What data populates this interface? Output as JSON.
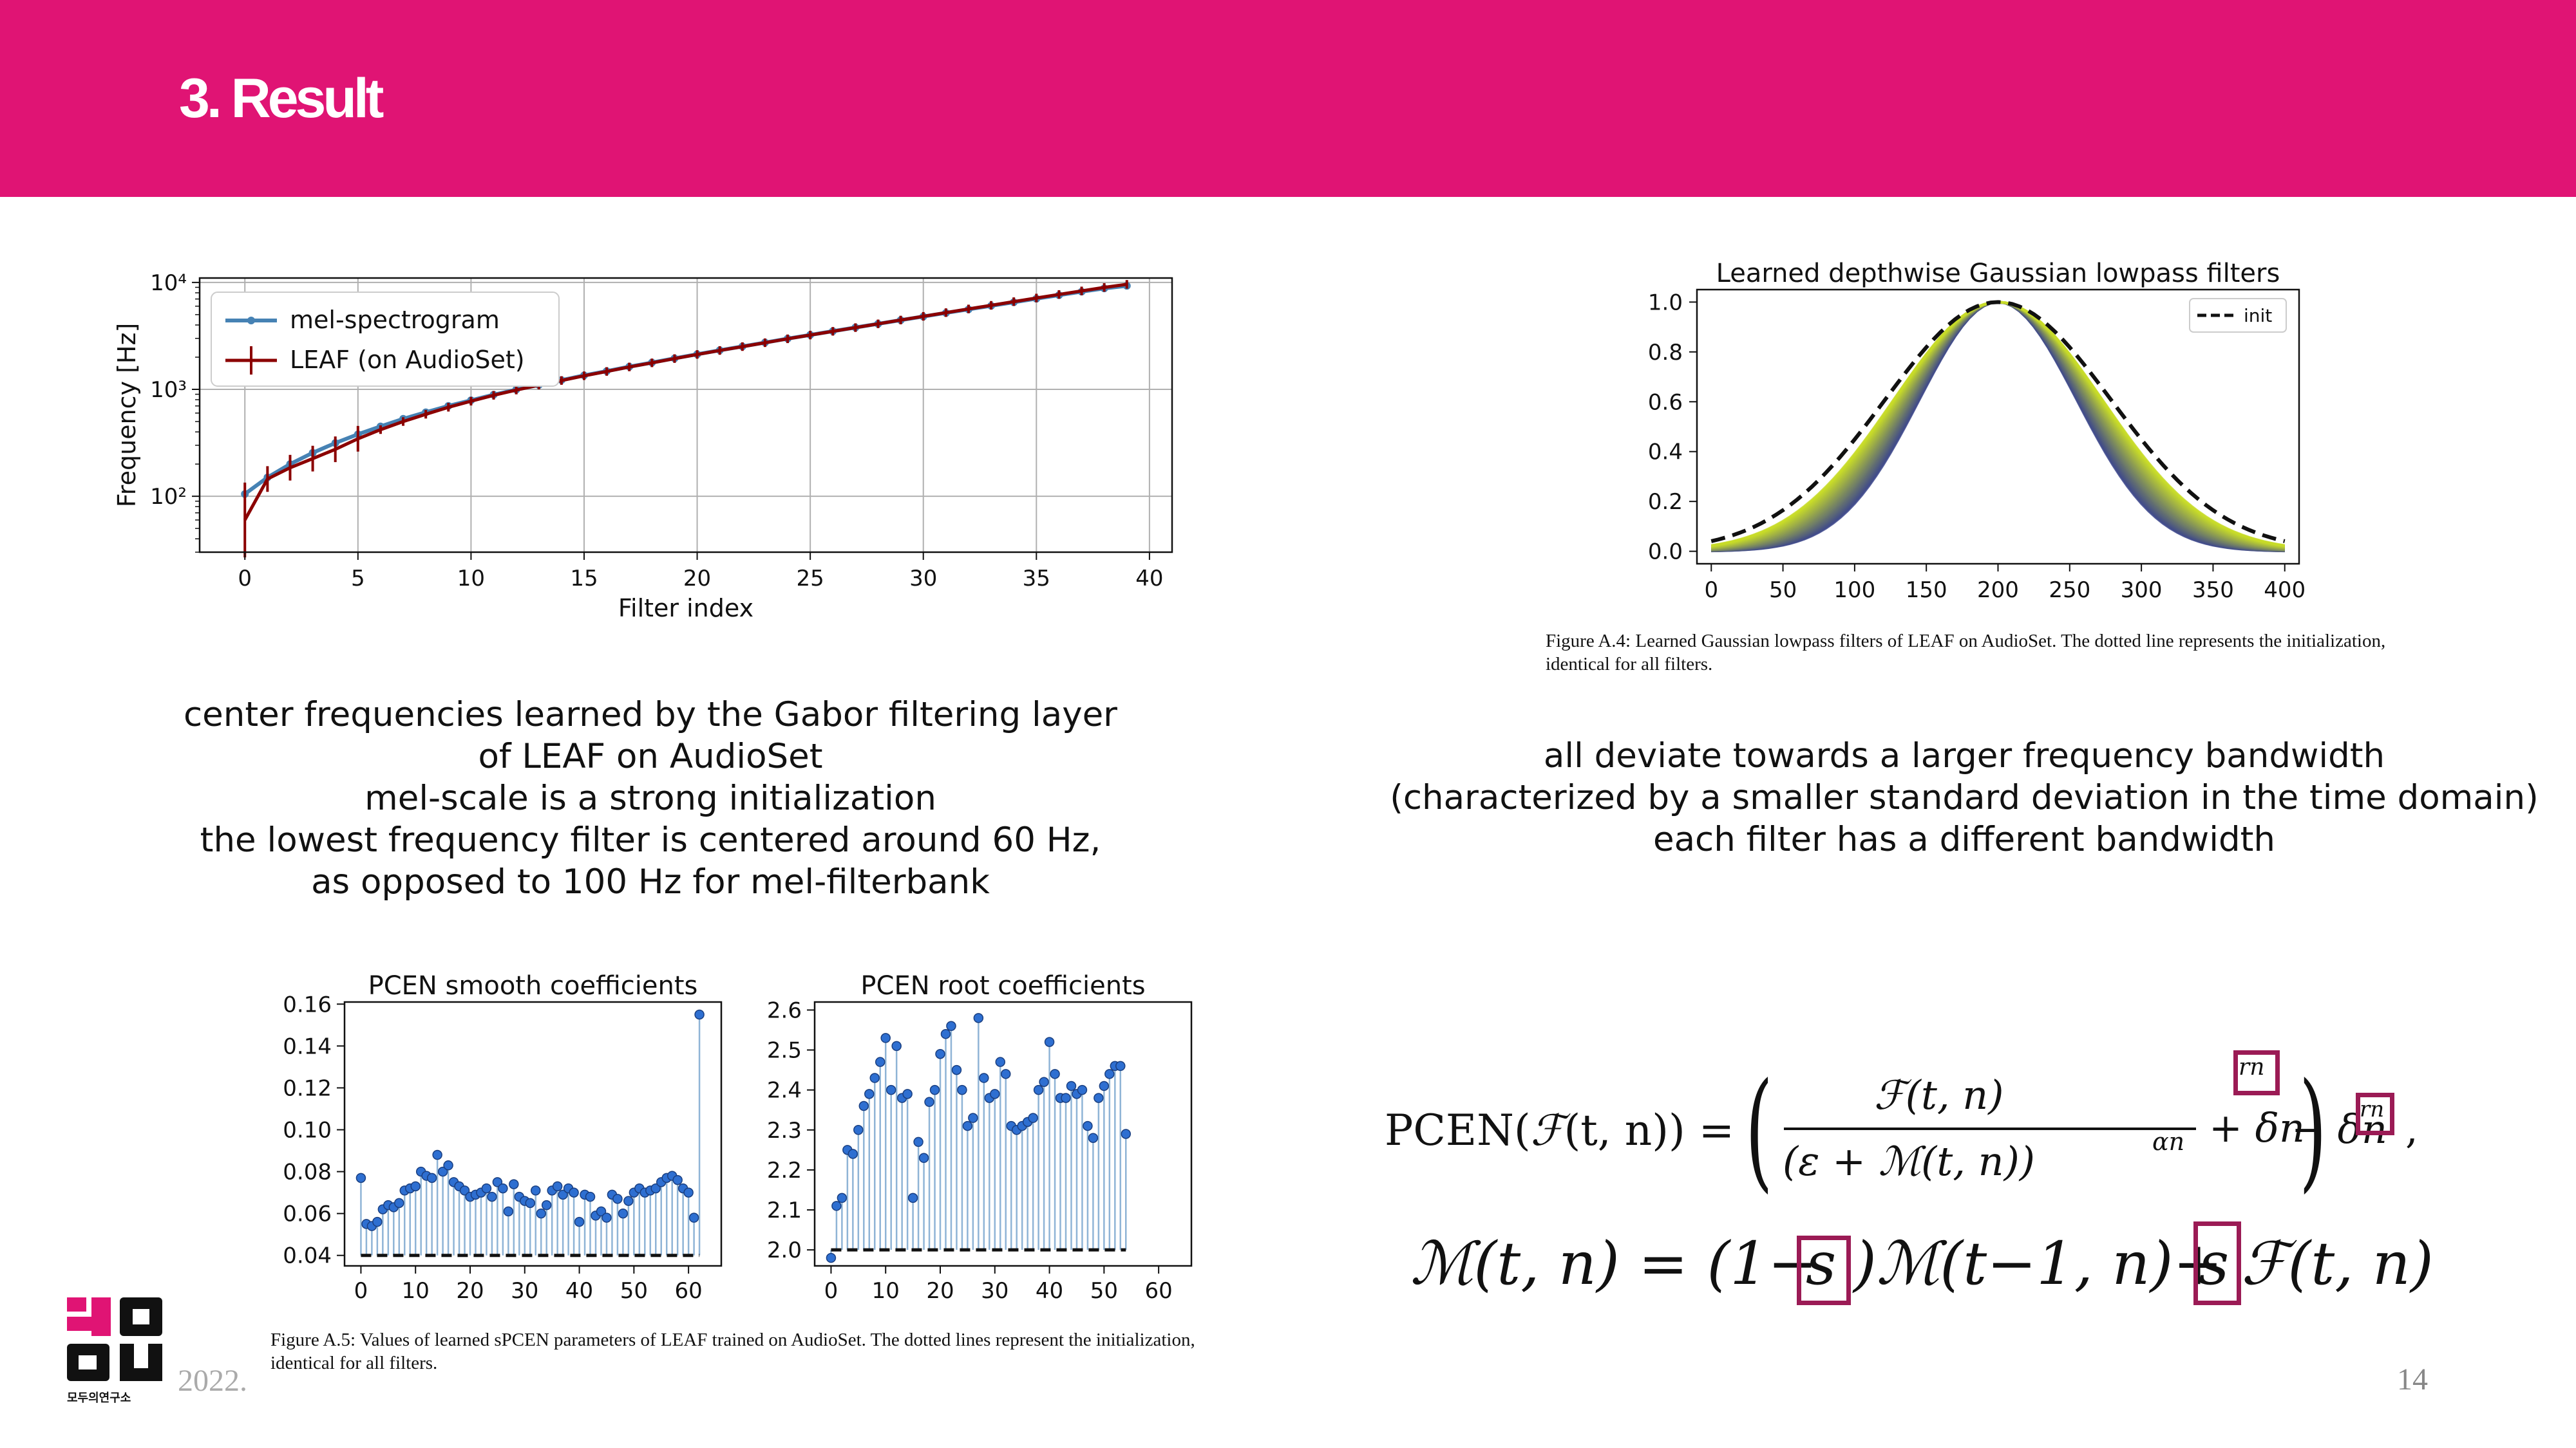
{
  "slide": {
    "title": "3. Result",
    "date": "2022.",
    "page_number": "14",
    "logo_text": "모두의연구소"
  },
  "text": {
    "left_lines": [
      "center frequencies learned by the Gabor filtering layer",
      "of LEAF on AudioSet",
      "mel-scale is a strong initialization",
      "the lowest frequency filter is centered around 60 Hz,",
      "as opposed to 100 Hz for mel-filterbank"
    ],
    "right_lines": [
      "all deviate towards a larger frequency bandwidth",
      "(characterized by a smaller standard deviation in the time domain)",
      "each filter has a different bandwidth"
    ]
  },
  "captions": {
    "fig_a4": "Figure A.4: Learned Gaussian lowpass filters of LEAF on AudioSet. The dotted line represents the initialization, identical for all filters.",
    "fig_a5": "Figure A.5: Values of learned sPCEN parameters of LEAF trained on AudioSet. The dotted lines represent the initialization, identical for all filters."
  },
  "colors": {
    "header": "#e01474",
    "mel": "#4682b4",
    "leaf": "#8b0000",
    "stem": "#8fb4d6",
    "marker": "#2e6fd1",
    "highlight_box": "#9b1b55"
  },
  "chart_data": [
    {
      "type": "line",
      "xlabel": "Filter index",
      "ylabel": "Frequency [Hz]",
      "yscale": "log",
      "xlim": [
        -2,
        41
      ],
      "ylim": [
        30,
        11000
      ],
      "xticks": [
        0,
        5,
        10,
        15,
        20,
        25,
        30,
        35,
        40
      ],
      "yticks": [
        {
          "value": 100,
          "label": "10²"
        },
        {
          "value": 1000,
          "label": "10³"
        },
        {
          "value": 10000,
          "label": "10⁴"
        }
      ],
      "grid": true,
      "legend": "top-left",
      "series": [
        {
          "name": "mel-spectrogram",
          "x": [
            0,
            1,
            2,
            3,
            4,
            5,
            6,
            7,
            8,
            9,
            10,
            11,
            12,
            13,
            14,
            15,
            16,
            17,
            18,
            19,
            20,
            21,
            22,
            23,
            24,
            25,
            26,
            27,
            28,
            29,
            30,
            31,
            32,
            33,
            34,
            35,
            36,
            37,
            38,
            39
          ],
          "y": [
            105,
            150,
            200,
            255,
            315,
            380,
            450,
            530,
            610,
            700,
            790,
            890,
            995,
            1100,
            1220,
            1350,
            1480,
            1630,
            1780,
            1950,
            2130,
            2320,
            2520,
            2740,
            2980,
            3230,
            3500,
            3790,
            4100,
            4440,
            4800,
            5190,
            5600,
            6050,
            6530,
            7050,
            7600,
            8200,
            8800,
            9300
          ]
        },
        {
          "name": "LEAF (on AudioSet)",
          "x": [
            0,
            1,
            2,
            3,
            4,
            5,
            6,
            7,
            8,
            9,
            10,
            11,
            12,
            13,
            14,
            15,
            16,
            17,
            18,
            19,
            20,
            21,
            22,
            23,
            24,
            25,
            26,
            27,
            28,
            29,
            30,
            31,
            32,
            33,
            34,
            35,
            36,
            37,
            38,
            39
          ],
          "y": [
            60,
            145,
            185,
            225,
            275,
            345,
            420,
            500,
            585,
            680,
            775,
            880,
            985,
            1095,
            1210,
            1340,
            1470,
            1620,
            1770,
            1940,
            2120,
            2310,
            2510,
            2730,
            2970,
            3220,
            3490,
            3780,
            4100,
            4450,
            4820,
            5220,
            5650,
            6110,
            6610,
            7150,
            7720,
            8330,
            8980,
            9600
          ]
        }
      ]
    },
    {
      "type": "line",
      "title": "Learned depthwise Gaussian lowpass filters",
      "xlim": [
        -10,
        410
      ],
      "ylim": [
        -0.05,
        1.05
      ],
      "xticks": [
        0,
        50,
        100,
        150,
        200,
        250,
        300,
        350,
        400
      ],
      "yticks": [
        0.0,
        0.2,
        0.4,
        0.6,
        0.8,
        1.0
      ],
      "center": 200,
      "init_sigma": 79,
      "learned_sigma_range": [
        55,
        73
      ],
      "legend": "top-right",
      "series": [
        {
          "name": "init"
        }
      ]
    },
    {
      "type": "scatter",
      "title": "PCEN smooth coefficients",
      "xlim": [
        -3,
        66
      ],
      "ylim": [
        0.035,
        0.161
      ],
      "xticks": [
        0,
        10,
        20,
        30,
        40,
        50,
        60
      ],
      "yticks": [
        0.04,
        0.06,
        0.08,
        0.1,
        0.12,
        0.14,
        0.16
      ],
      "init": 0.04,
      "values": [
        0.077,
        0.055,
        0.054,
        0.056,
        0.062,
        0.064,
        0.063,
        0.065,
        0.071,
        0.072,
        0.073,
        0.08,
        0.078,
        0.077,
        0.088,
        0.08,
        0.083,
        0.075,
        0.073,
        0.071,
        0.068,
        0.069,
        0.07,
        0.072,
        0.068,
        0.075,
        0.072,
        0.061,
        0.074,
        0.068,
        0.066,
        0.065,
        0.071,
        0.06,
        0.064,
        0.071,
        0.073,
        0.069,
        0.072,
        0.07,
        0.056,
        0.069,
        0.068,
        0.059,
        0.061,
        0.058,
        0.069,
        0.067,
        0.06,
        0.066,
        0.07,
        0.072,
        0.07,
        0.071,
        0.072,
        0.075,
        0.077,
        0.078,
        0.076,
        0.072,
        0.07,
        0.058,
        0.155
      ]
    },
    {
      "type": "scatter",
      "title": "PCEN root coefficients",
      "xlim": [
        -3,
        66
      ],
      "ylim": [
        1.96,
        2.62
      ],
      "xticks": [
        0,
        10,
        20,
        30,
        40,
        50,
        60
      ],
      "yticks": [
        2.0,
        2.1,
        2.2,
        2.3,
        2.4,
        2.5,
        2.6
      ],
      "init": 2.0,
      "values": [
        1.98,
        2.11,
        2.13,
        2.25,
        2.24,
        2.3,
        2.36,
        2.39,
        2.43,
        2.47,
        2.53,
        2.4,
        2.51,
        2.38,
        2.39,
        2.13,
        2.27,
        2.23,
        2.37,
        2.4,
        2.49,
        2.54,
        2.56,
        2.45,
        2.4,
        2.31,
        2.33,
        2.58,
        2.43,
        2.38,
        2.39,
        2.47,
        2.44,
        2.31,
        2.3,
        2.31,
        2.32,
        2.33,
        2.4,
        2.42,
        2.52,
        2.44,
        2.38,
        2.38,
        2.41,
        2.39,
        2.4,
        2.31,
        2.28,
        2.38,
        2.41,
        2.44,
        2.46,
        2.46,
        2.29
      ]
    }
  ],
  "formula": {
    "pcen_lhs": "PCEN(",
    "pcen_arg": "(t, n)) =",
    "frac_num": "(t, n)",
    "frac_den_open": "(ε + ",
    "frac_den_mid": "(t, n))",
    "alpha_exp": "αn",
    "plus_delta": "+ δn",
    "r_exp": "rn",
    "minus_delta": "− δn",
    "r_exp2": "rn",
    "comma": ",",
    "m_lhs": "(t, n) = (1−",
    "s1": "s",
    "m_mid": ")",
    "m_mid2": "(t−1, n)+",
    "s2": "s",
    "m_end": "(t, n)"
  }
}
